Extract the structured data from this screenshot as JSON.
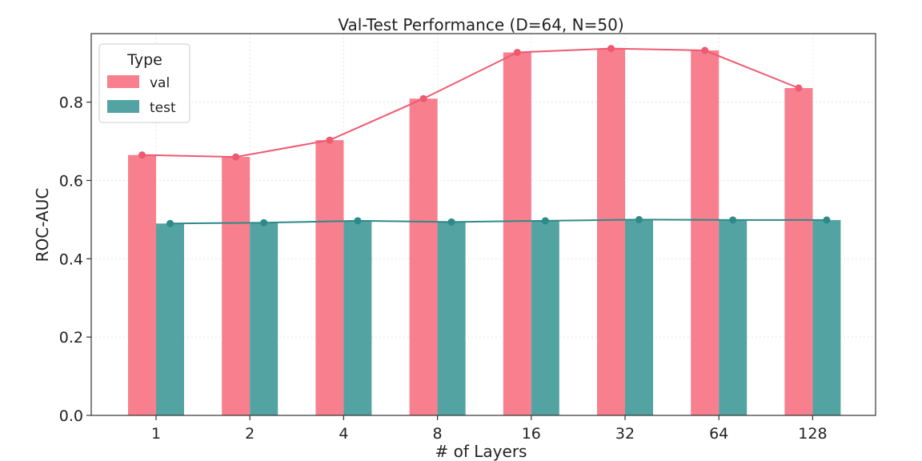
{
  "chart_data": {
    "type": "bar",
    "title": "Val-Test Performance (D=64, N=50)",
    "xlabel": "# of Layers",
    "ylabel": "ROC-AUC",
    "categories": [
      "1",
      "2",
      "4",
      "8",
      "16",
      "32",
      "64",
      "128"
    ],
    "series": [
      {
        "name": "val",
        "color": "#f77f8e",
        "line_color": "#ee5a70",
        "values": [
          0.665,
          0.66,
          0.703,
          0.809,
          0.927,
          0.937,
          0.932,
          0.836
        ]
      },
      {
        "name": "test",
        "color": "#52a3a1",
        "line_color": "#2e8a88",
        "values": [
          0.49,
          0.492,
          0.497,
          0.494,
          0.497,
          0.5,
          0.499,
          0.499
        ]
      }
    ],
    "ylim": [
      0,
      0.975
    ],
    "yticks": [
      "0.0",
      "0.2",
      "0.4",
      "0.6",
      "0.8"
    ],
    "grid": true,
    "legend": {
      "title": "Type",
      "placement": "top-left"
    }
  }
}
